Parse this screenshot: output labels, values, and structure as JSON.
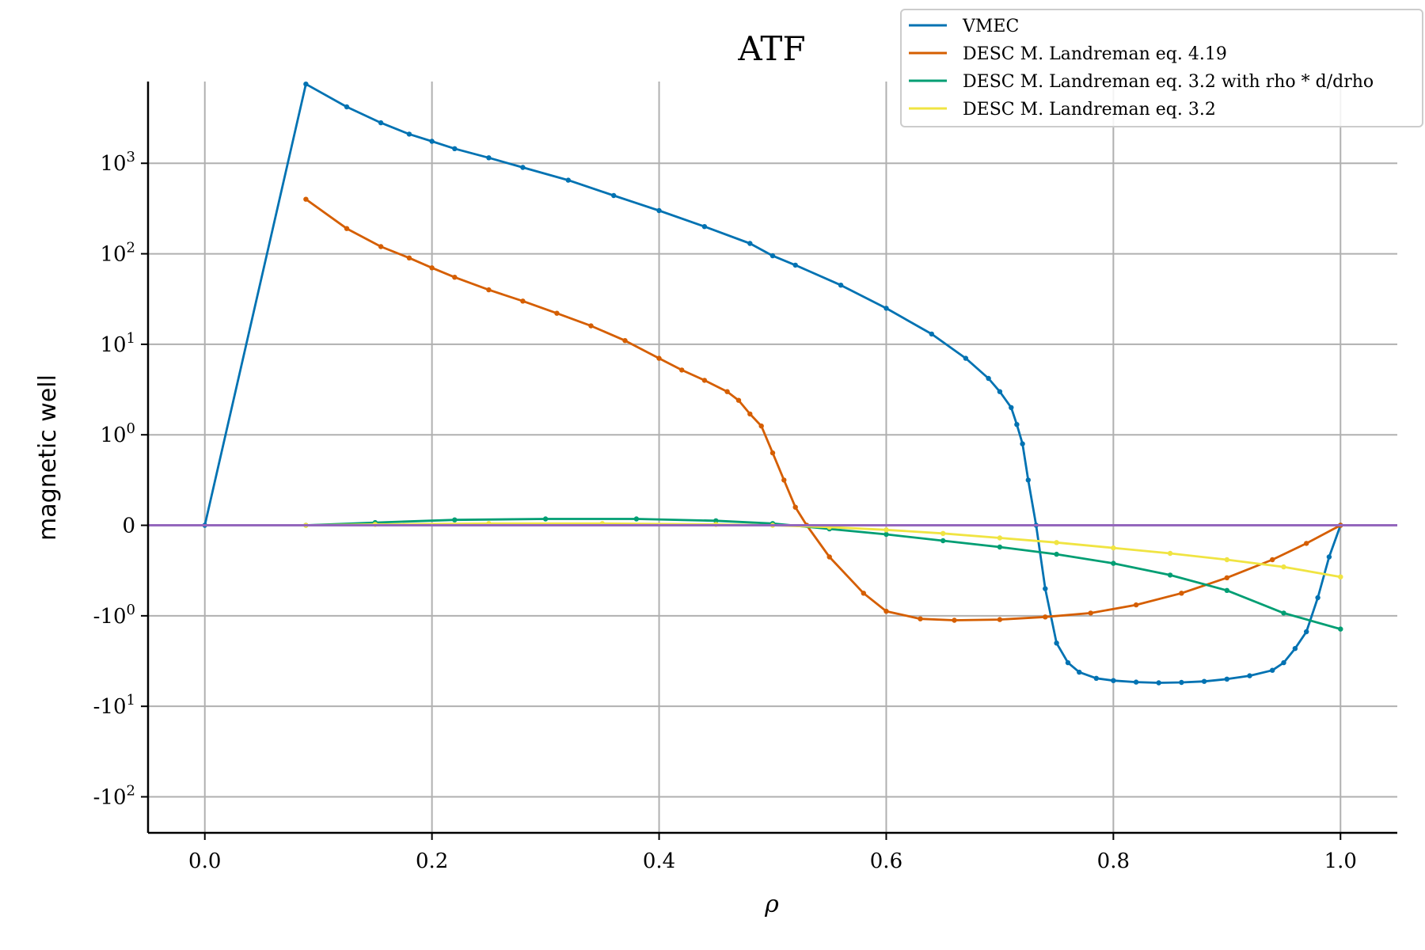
{
  "chart_data": {
    "type": "line",
    "title": "ATF",
    "xlabel": "ρ",
    "ylabel": "magnetic well",
    "yscale": "symlog",
    "xlim": [
      -0.05,
      1.05
    ],
    "ylim": [
      -250,
      8000
    ],
    "grid": true,
    "legend_position": "upper-right",
    "x_ticks": [
      {
        "value": 0.0,
        "label": "0.0"
      },
      {
        "value": 0.2,
        "label": "0.2"
      },
      {
        "value": 0.4,
        "label": "0.4"
      },
      {
        "value": 0.6,
        "label": "0.6"
      },
      {
        "value": 0.8,
        "label": "0.8"
      },
      {
        "value": 1.0,
        "label": "1.0"
      }
    ],
    "y_ticks": [
      {
        "value": 1000,
        "base": "10",
        "exp": "3"
      },
      {
        "value": 100,
        "base": "10",
        "exp": "2"
      },
      {
        "value": 10,
        "base": "10",
        "exp": "1"
      },
      {
        "value": 1,
        "base": "10",
        "exp": "0"
      },
      {
        "value": 0,
        "base": "0",
        "exp": ""
      },
      {
        "value": -1,
        "base": "-10",
        "exp": "0"
      },
      {
        "value": -10,
        "base": "-10",
        "exp": "1"
      },
      {
        "value": -100,
        "base": "-10",
        "exp": "2"
      }
    ],
    "series": [
      {
        "name": "VMEC",
        "color": "#0072b2",
        "x": [
          0.0,
          0.089,
          0.125,
          0.155,
          0.18,
          0.2,
          0.22,
          0.25,
          0.28,
          0.32,
          0.36,
          0.4,
          0.44,
          0.48,
          0.5,
          0.52,
          0.56,
          0.6,
          0.64,
          0.67,
          0.69,
          0.7,
          0.71,
          0.715,
          0.72,
          0.725,
          0.732,
          0.74,
          0.75,
          0.76,
          0.77,
          0.785,
          0.8,
          0.82,
          0.84,
          0.86,
          0.88,
          0.9,
          0.92,
          0.94,
          0.95,
          0.96,
          0.97,
          0.98,
          0.99,
          1.0
        ],
        "y": [
          0,
          7500,
          4200,
          2800,
          2100,
          1750,
          1450,
          1150,
          900,
          650,
          440,
          300,
          200,
          130,
          95,
          75,
          45,
          25,
          13,
          7,
          4.2,
          3,
          2,
          1.3,
          0.9,
          0.5,
          0,
          -0.7,
          -2.0,
          -3.3,
          -4.2,
          -4.9,
          -5.2,
          -5.4,
          -5.5,
          -5.45,
          -5.3,
          -5.0,
          -4.6,
          -4.0,
          -3.3,
          -2.3,
          -1.5,
          -0.8,
          -0.35,
          0
        ]
      },
      {
        "name": "DESC M. Landreman eq. 4.19",
        "color": "#d55e00",
        "x": [
          0.089,
          0.125,
          0.155,
          0.18,
          0.2,
          0.22,
          0.25,
          0.28,
          0.31,
          0.34,
          0.37,
          0.4,
          0.42,
          0.44,
          0.46,
          0.47,
          0.48,
          0.49,
          0.5,
          0.51,
          0.52,
          0.53,
          0.55,
          0.58,
          0.6,
          0.63,
          0.66,
          0.7,
          0.74,
          0.78,
          0.82,
          0.86,
          0.9,
          0.94,
          0.97,
          1.0
        ],
        "y": [
          400,
          190,
          120,
          90,
          70,
          55,
          40,
          30,
          22,
          16,
          11,
          7,
          5.2,
          4,
          3,
          2.4,
          1.7,
          1.25,
          0.8,
          0.5,
          0.2,
          0,
          -0.35,
          -0.75,
          -0.95,
          -1.08,
          -1.12,
          -1.1,
          -1.03,
          -0.97,
          -0.88,
          -0.75,
          -0.58,
          -0.38,
          -0.2,
          0
        ]
      },
      {
        "name": "DESC M. Landreman eq. 3.2 with rho * d/drho",
        "color": "#009e73",
        "x": [
          0.089,
          0.15,
          0.22,
          0.3,
          0.38,
          0.45,
          0.5,
          0.55,
          0.6,
          0.65,
          0.7,
          0.75,
          0.8,
          0.85,
          0.9,
          0.95,
          1.0
        ],
        "y": [
          0.0,
          0.03,
          0.06,
          0.07,
          0.07,
          0.05,
          0.02,
          -0.04,
          -0.1,
          -0.17,
          -0.24,
          -0.32,
          -0.42,
          -0.55,
          -0.72,
          -0.97,
          -1.4
        ]
      },
      {
        "name": "DESC M. Landreman eq. 3.2",
        "color": "#f0e442",
        "x": [
          0.089,
          0.15,
          0.25,
          0.35,
          0.45,
          0.5,
          0.55,
          0.6,
          0.65,
          0.7,
          0.75,
          0.8,
          0.85,
          0.9,
          0.95,
          1.0
        ],
        "y": [
          0.0,
          0.01,
          0.02,
          0.02,
          0.01,
          0.0,
          -0.02,
          -0.05,
          -0.09,
          -0.14,
          -0.19,
          -0.25,
          -0.31,
          -0.38,
          -0.46,
          -0.57
        ]
      }
    ],
    "reference_line": {
      "y": 0,
      "color": "#9467bd"
    }
  }
}
